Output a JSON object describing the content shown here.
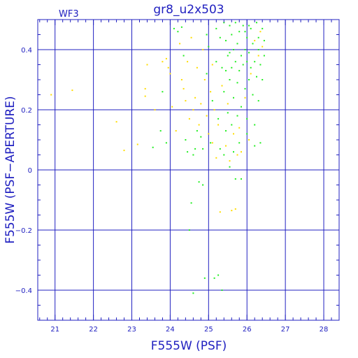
{
  "chart_data": {
    "type": "scatter",
    "title": "gr8_u2x503",
    "panel_label": "WF3",
    "xlabel": "F555W (PSF)",
    "ylabel": "F555W (PSF−APERTURE)",
    "xlim": [
      20.55,
      28.4
    ],
    "ylim": [
      -0.5,
      0.5
    ],
    "x_ticks": [
      "21",
      "22",
      "23",
      "24",
      "25",
      "26",
      "27",
      "28"
    ],
    "x_tick_values": [
      21,
      22,
      23,
      24,
      25,
      26,
      27,
      28
    ],
    "y_ticks": [
      "0.4",
      "0.2",
      "0",
      "−0.2",
      "−0.4"
    ],
    "y_tick_values": [
      0.4,
      0.2,
      0,
      -0.2,
      -0.4
    ],
    "grid": true,
    "colors": {
      "axis": "#2020c0",
      "grid": "#2020c0",
      "text": "#2020c0"
    },
    "series": [
      {
        "color": "#ffdd00",
        "points": [
          [
            20.9,
            0.25
          ],
          [
            21.45,
            0.265
          ],
          [
            22.6,
            0.16
          ],
          [
            22.8,
            0.065
          ],
          [
            23.15,
            0.085
          ],
          [
            23.4,
            0.35
          ],
          [
            23.35,
            0.27
          ],
          [
            23.35,
            0.245
          ],
          [
            23.6,
            0.2
          ],
          [
            23.8,
            0.36
          ],
          [
            23.9,
            0.37
          ],
          [
            23.95,
            0.34
          ],
          [
            24.0,
            0.32
          ],
          [
            24.05,
            0.21
          ],
          [
            24.15,
            0.13
          ],
          [
            24.25,
            0.42
          ],
          [
            24.3,
            0.3
          ],
          [
            24.35,
            0.27
          ],
          [
            24.4,
            0.23
          ],
          [
            24.45,
            0.36
          ],
          [
            24.5,
            0.17
          ],
          [
            24.55,
            0.44
          ],
          [
            24.6,
            0.2
          ],
          [
            24.65,
            0.24
          ],
          [
            24.7,
            0.34
          ],
          [
            24.75,
            0.15
          ],
          [
            24.8,
            0.22
          ],
          [
            24.85,
            0.4
          ],
          [
            24.9,
            0.3
          ],
          [
            24.95,
            0.18
          ],
          [
            25.0,
            0.12
          ],
          [
            25.05,
            0.26
          ],
          [
            25.1,
            0.09
          ],
          [
            25.1,
            0.35
          ],
          [
            25.15,
            0.2
          ],
          [
            25.2,
            0.04
          ],
          [
            25.25,
            0.15
          ],
          [
            25.3,
            -0.14
          ],
          [
            25.35,
            0.28
          ],
          [
            25.45,
            0.08
          ],
          [
            25.5,
            0.22
          ],
          [
            25.55,
            0.03
          ],
          [
            25.6,
            -0.135
          ],
          [
            25.65,
            0.12
          ],
          [
            25.7,
            -0.13
          ],
          [
            25.75,
            0.05
          ],
          [
            25.8,
            0.14
          ],
          [
            25.85,
            0.06
          ],
          [
            25.95,
            0.24
          ],
          [
            26.05,
            0.1
          ],
          [
            26.1,
            0.32
          ],
          [
            26.2,
            0.43
          ],
          [
            26.3,
            0.38
          ],
          [
            26.35,
            0.46
          ],
          [
            26.4,
            0.41
          ]
        ]
      },
      {
        "color": "#22ee22",
        "points": [
          [
            23.55,
            0.075
          ],
          [
            23.75,
            0.13
          ],
          [
            23.8,
            0.26
          ],
          [
            23.9,
            0.09
          ],
          [
            24.1,
            0.47
          ],
          [
            24.2,
            0.46
          ],
          [
            24.3,
            0.475
          ],
          [
            24.35,
            0.38
          ],
          [
            24.4,
            0.1
          ],
          [
            24.45,
            0.06
          ],
          [
            24.5,
            -0.2
          ],
          [
            24.55,
            -0.11
          ],
          [
            24.6,
            0.05
          ],
          [
            24.6,
            -0.41
          ],
          [
            24.65,
            0.07
          ],
          [
            24.7,
            0.13
          ],
          [
            24.75,
            -0.04
          ],
          [
            24.8,
            0.11
          ],
          [
            24.85,
            -0.05
          ],
          [
            24.85,
            0.07
          ],
          [
            24.9,
            -0.36
          ],
          [
            24.95,
            0.45
          ],
          [
            24.95,
            0.32
          ],
          [
            25.0,
            0.41
          ],
          [
            25.05,
            0.09
          ],
          [
            25.1,
            0.23
          ],
          [
            25.15,
            -0.36
          ],
          [
            25.2,
            0.47
          ],
          [
            25.2,
            0.36
          ],
          [
            25.25,
            0.17
          ],
          [
            25.25,
            -0.35
          ],
          [
            25.3,
            0.44
          ],
          [
            25.3,
            0.07
          ],
          [
            25.35,
            -0.4
          ],
          [
            25.35,
            0.34
          ],
          [
            25.4,
            0.49
          ],
          [
            25.4,
            0.26
          ],
          [
            25.45,
            0.13
          ],
          [
            25.45,
            0.43
          ],
          [
            25.5,
            0.38
          ],
          [
            25.5,
            0.19
          ],
          [
            25.55,
            0.48
          ],
          [
            25.55,
            0.3
          ],
          [
            25.6,
            0.45
          ],
          [
            25.6,
            0.34
          ],
          [
            25.65,
            0.4
          ],
          [
            25.65,
            0.24
          ],
          [
            25.7,
            0.49
          ],
          [
            25.7,
            0.36
          ],
          [
            25.75,
            0.42
          ],
          [
            25.75,
            0.29
          ],
          [
            25.8,
            0.46
          ],
          [
            25.8,
            0.33
          ],
          [
            25.85,
            0.38
          ],
          [
            25.85,
            0.21
          ],
          [
            25.9,
            0.48
          ],
          [
            25.9,
            0.35
          ],
          [
            25.95,
            0.4
          ],
          [
            25.95,
            0.27
          ],
          [
            26.0,
            0.44
          ],
          [
            26.0,
            0.36
          ],
          [
            26.0,
            0.17
          ],
          [
            26.05,
            0.39
          ],
          [
            26.05,
            0.3
          ],
          [
            26.1,
            0.47
          ],
          [
            26.1,
            0.34
          ],
          [
            26.15,
            0.42
          ],
          [
            26.15,
            0.25
          ],
          [
            26.2,
            0.36
          ],
          [
            26.2,
            0.15
          ],
          [
            26.25,
            0.49
          ],
          [
            26.25,
            0.31
          ],
          [
            26.3,
            0.44
          ],
          [
            26.3,
            0.4
          ],
          [
            26.35,
            0.35
          ],
          [
            26.35,
            0.09
          ],
          [
            26.4,
            0.47
          ],
          [
            26.4,
            0.3
          ],
          [
            26.45,
            0.43
          ],
          [
            26.45,
            0.38
          ],
          [
            25.55,
            0.01
          ],
          [
            25.65,
            0.06
          ],
          [
            25.7,
            -0.03
          ],
          [
            25.8,
            0.09
          ],
          [
            25.85,
            -0.03
          ],
          [
            25.6,
            0.15
          ],
          [
            25.75,
            0.18
          ],
          [
            26.0,
            0.12
          ],
          [
            26.2,
            0.08
          ],
          [
            25.4,
            0.05
          ],
          [
            25.45,
            0.33
          ],
          [
            25.55,
            0.39
          ],
          [
            25.95,
            0.46
          ],
          [
            26.05,
            0.48
          ],
          [
            26.3,
            0.23
          ]
        ]
      }
    ]
  }
}
